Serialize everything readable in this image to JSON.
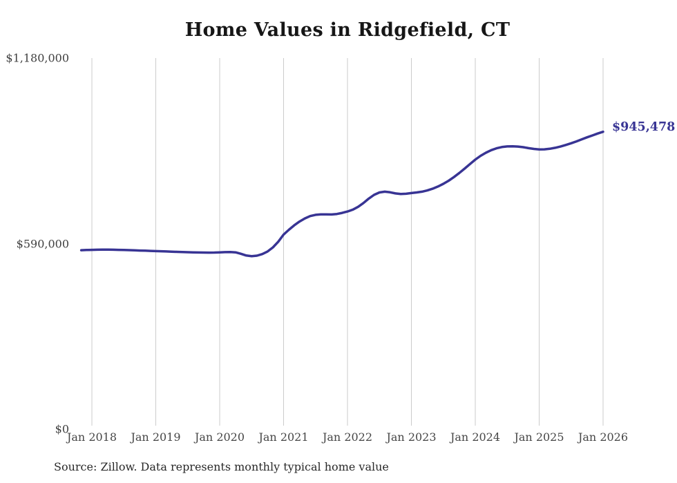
{
  "chart_data": {
    "type": "line",
    "title": "Home Values in Ridgefield, CT",
    "source_note": "Source: Zillow. Data represents monthly typical home value",
    "end_label": "$945,478",
    "end_value": 945478,
    "series_name": "Monthly typical home value",
    "frequency": "monthly",
    "start_month": "2017-11",
    "x_tick_labels": [
      "Jan 2018",
      "Jan 2019",
      "Jan 2020",
      "Jan 2021",
      "Jan 2022",
      "Jan 2023",
      "Jan 2024",
      "Jan 2025",
      "Jan 2026"
    ],
    "y_ticks": [
      {
        "label": "$1,180,000",
        "value": 1180000
      },
      {
        "label": "$590,000",
        "value": 590000
      },
      {
        "label": "$0",
        "value": 0
      }
    ],
    "xlabel": "",
    "ylabel": "",
    "ylim": [
      0,
      1180000
    ],
    "grid": "vertical-only",
    "legend": "none",
    "colors": {
      "line": "#383494",
      "grid": "#cbcbcb",
      "title": "#161616",
      "axis_labels": "#464646",
      "end_label": "#383494",
      "background": "#ffffff"
    },
    "values": [
      569000,
      569600,
      570100,
      570400,
      570600,
      570700,
      570500,
      570100,
      569600,
      569100,
      568500,
      567900,
      567300,
      566700,
      566100,
      565500,
      564900,
      564300,
      563700,
      563100,
      562600,
      562100,
      561700,
      561400,
      561300,
      561500,
      562000,
      562800,
      563200,
      562000,
      557500,
      552000,
      550000,
      551500,
      556500,
      565000,
      578000,
      596000,
      618500,
      634000,
      648000,
      660000,
      670000,
      677500,
      681500,
      683000,
      682800,
      682500,
      684000,
      687500,
      692000,
      698000,
      707000,
      719000,
      733000,
      745000,
      752500,
      755000,
      753000,
      749500,
      747500,
      748500,
      750700,
      752500,
      755000,
      759000,
      764500,
      771500,
      780000,
      790000,
      801500,
      814500,
      828500,
      843000,
      857000,
      869000,
      879000,
      887000,
      893000,
      897000,
      899000,
      899500,
      898500,
      896500,
      893500,
      891000,
      889500,
      889800,
      891500,
      894500,
      898500,
      903500,
      909000,
      915000,
      921500,
      928000,
      934000,
      940000,
      945478
    ]
  }
}
